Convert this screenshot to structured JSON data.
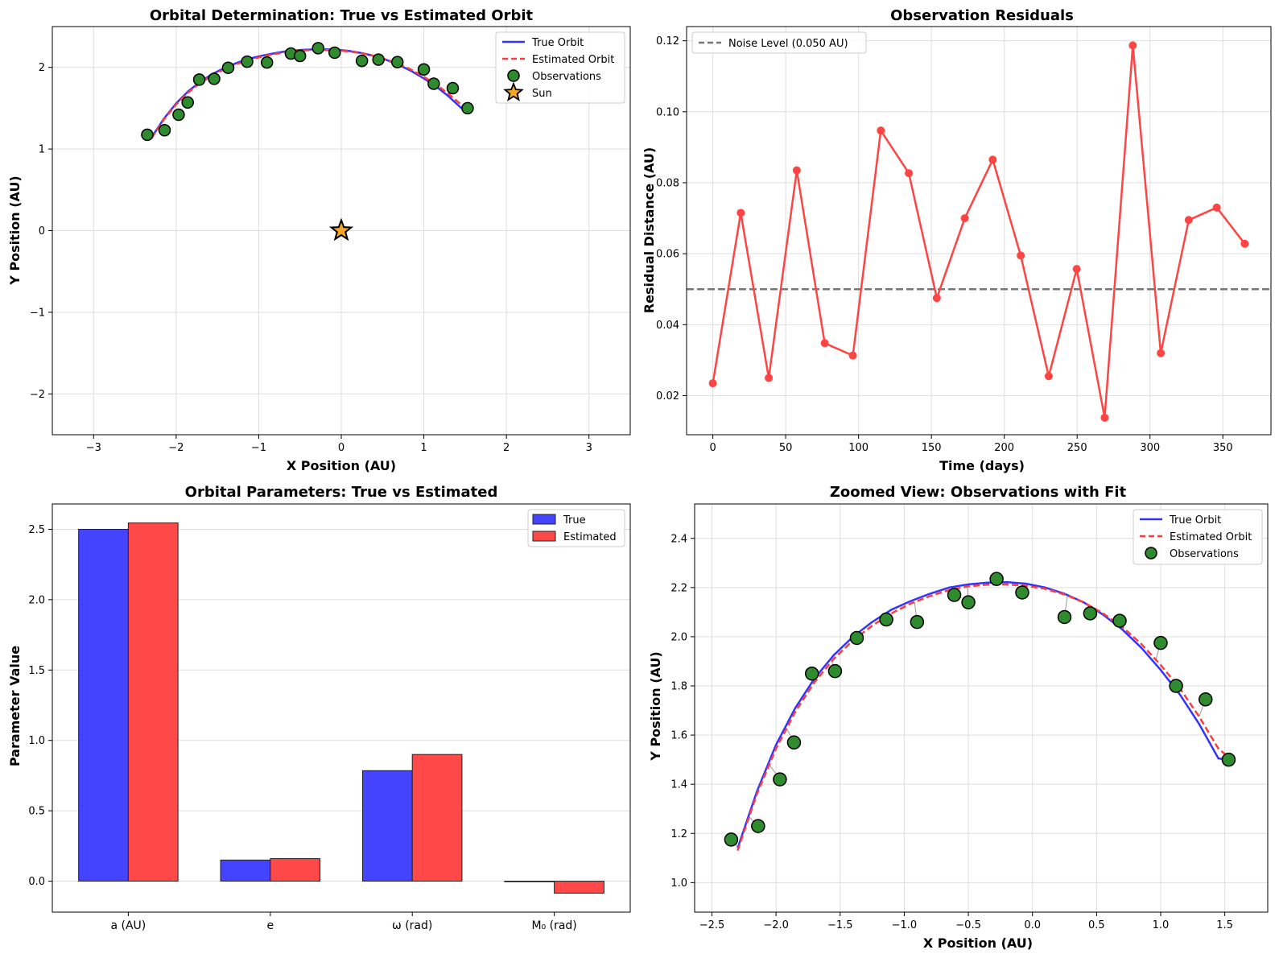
{
  "colors": {
    "true_orbit": "#3333ff",
    "estimated_orbit": "#ff3b3b",
    "observation_fill": "#2e8b2e",
    "sun_fill": "#f5a623",
    "residual": "#ff4444",
    "noise": "#777777",
    "bar_true": "#4444ff",
    "bar_est": "#ff4848",
    "grid": "#dddddd"
  },
  "chart_data": [
    {
      "id": "orbit",
      "type": "line",
      "title": "Orbital Determination: True vs Estimated Orbit",
      "xlabel": "X Position (AU)",
      "ylabel": "Y Position (AU)",
      "xlim": [
        -3.5,
        3.5
      ],
      "ylim": [
        -2.5,
        2.5
      ],
      "xticks": [
        -3,
        -2,
        -1,
        0,
        1,
        2,
        3
      ],
      "yticks": [
        -2,
        -1,
        0,
        1,
        2
      ],
      "xtick_labels": [
        "−3",
        "−2",
        "−1",
        "0",
        "1",
        "2",
        "3"
      ],
      "ytick_labels": [
        "−2",
        "−1",
        "0",
        "1",
        "2"
      ],
      "grid": true,
      "legend_position": "top-right",
      "legend": [
        {
          "label": "True Orbit",
          "kind": "line",
          "color": "#3333ff"
        },
        {
          "label": "Estimated Orbit",
          "kind": "dashed",
          "color": "#ff3b3b"
        },
        {
          "label": "Observations",
          "kind": "circle",
          "color": "#2e8b2e"
        },
        {
          "label": "Sun",
          "kind": "star",
          "color": "#f5a623"
        }
      ],
      "sun": {
        "x": 0,
        "y": 0
      }
    },
    {
      "id": "residuals",
      "type": "line",
      "title": "Observation Residuals",
      "xlabel": "Time (days)",
      "ylabel": "Residual Distance (AU)",
      "xlim": [
        -18,
        383
      ],
      "ylim": [
        0.009,
        0.124
      ],
      "xticks": [
        0,
        50,
        100,
        150,
        200,
        250,
        300,
        350
      ],
      "yticks": [
        0.02,
        0.04,
        0.06,
        0.08,
        0.1,
        0.12
      ],
      "xtick_labels": [
        "0",
        "50",
        "100",
        "150",
        "200",
        "250",
        "300",
        "350"
      ],
      "ytick_labels": [
        "0.02",
        "0.04",
        "0.06",
        "0.08",
        "0.10",
        "0.12"
      ],
      "grid": true,
      "legend_position": "top-left",
      "noise_level": 0.05,
      "legend": [
        {
          "label": "Noise Level (0.050 AU)",
          "kind": "dashed",
          "color": "#777777"
        }
      ],
      "x": [
        0,
        19.2,
        38.4,
        57.6,
        76.8,
        96.1,
        115.3,
        134.5,
        153.7,
        172.9,
        192.1,
        211.3,
        230.5,
        249.7,
        268.9,
        288.2,
        307.4,
        326.6,
        345.8,
        365
      ],
      "y": [
        0.0235,
        0.0715,
        0.025,
        0.0835,
        0.0348,
        0.0313,
        0.0947,
        0.0827,
        0.0475,
        0.07,
        0.0865,
        0.0595,
        0.0255,
        0.0557,
        0.0138,
        0.1187,
        0.032,
        0.0695,
        0.073,
        0.0628
      ]
    },
    {
      "id": "params",
      "type": "bar",
      "title": "Orbital Parameters: True vs Estimated",
      "xlabel": "",
      "ylabel": "Parameter Value",
      "ylim": [
        -0.22,
        2.68
      ],
      "yticks": [
        0.0,
        0.5,
        1.0,
        1.5,
        2.0,
        2.5
      ],
      "ytick_labels": [
        "0.0",
        "0.5",
        "1.0",
        "1.5",
        "2.0",
        "2.5"
      ],
      "grid": true,
      "legend_position": "top-right",
      "categories": [
        "a (AU)",
        "e",
        "ω (rad)",
        "M₀ (rad)"
      ],
      "series": [
        {
          "name": "True",
          "values": [
            2.5,
            0.15,
            0.785,
            0.0
          ],
          "color": "#4444ff"
        },
        {
          "name": "Estimated",
          "values": [
            2.545,
            0.16,
            0.9,
            -0.085
          ],
          "color": "#ff4848"
        }
      ]
    },
    {
      "id": "zoom",
      "type": "line",
      "title": "Zoomed View: Observations with Fit",
      "xlabel": "X Position (AU)",
      "ylabel": "Y Position (AU)",
      "xlim": [
        -2.635,
        1.835
      ],
      "ylim": [
        0.88,
        2.54
      ],
      "xticks": [
        -2.5,
        -2.0,
        -1.5,
        -1.0,
        -0.5,
        0.0,
        0.5,
        1.0,
        1.5
      ],
      "yticks": [
        1.0,
        1.2,
        1.4,
        1.6,
        1.8,
        2.0,
        2.2,
        2.4
      ],
      "xtick_labels": [
        "−2.5",
        "−2.0",
        "−1.5",
        "−1.0",
        "−0.5",
        "0.0",
        "0.5",
        "1.0",
        "1.5"
      ],
      "ytick_labels": [
        "1.0",
        "1.2",
        "1.4",
        "1.6",
        "1.8",
        "2.0",
        "2.2",
        "2.4"
      ],
      "grid": true,
      "legend_position": "top-right",
      "legend": [
        {
          "label": "True Orbit",
          "kind": "line",
          "color": "#3333ff"
        },
        {
          "label": "Estimated Orbit",
          "kind": "dashed",
          "color": "#ff3b3b"
        },
        {
          "label": "Observations",
          "kind": "circle",
          "color": "#2e8b2e"
        }
      ]
    }
  ],
  "observations": {
    "x": [
      -2.35,
      -2.14,
      -1.97,
      -1.86,
      -1.72,
      -1.54,
      -1.37,
      -1.14,
      -0.9,
      -0.61,
      -0.5,
      -0.28,
      -0.08,
      0.25,
      0.45,
      0.68,
      1.0,
      1.12,
      1.35,
      1.53
    ],
    "y": [
      1.175,
      1.23,
      1.42,
      1.57,
      1.85,
      1.86,
      1.995,
      2.07,
      2.06,
      2.17,
      2.14,
      2.235,
      2.18,
      2.08,
      2.095,
      2.065,
      1.975,
      1.8,
      1.745,
      1.5
    ]
  },
  "true_orbit": {
    "x": [
      -2.3,
      -2.15,
      -2.0,
      -1.85,
      -1.7,
      -1.55,
      -1.4,
      -1.25,
      -1.1,
      -0.95,
      -0.8,
      -0.65,
      -0.5,
      -0.35,
      -0.2,
      -0.05,
      0.1,
      0.25,
      0.4,
      0.55,
      0.7,
      0.85,
      1.0,
      1.15,
      1.3,
      1.45,
      1.52
    ],
    "y": [
      1.14,
      1.37,
      1.56,
      1.71,
      1.83,
      1.925,
      2.0,
      2.06,
      2.11,
      2.145,
      2.175,
      2.2,
      2.213,
      2.22,
      2.222,
      2.216,
      2.2,
      2.175,
      2.14,
      2.09,
      2.03,
      1.955,
      1.865,
      1.765,
      1.645,
      1.505,
      1.5
    ]
  },
  "estimated_orbit": {
    "x": [
      -2.3,
      -2.15,
      -2.0,
      -1.85,
      -1.7,
      -1.55,
      -1.4,
      -1.25,
      -1.1,
      -0.95,
      -0.8,
      -0.65,
      -0.5,
      -0.35,
      -0.2,
      -0.05,
      0.1,
      0.25,
      0.4,
      0.55,
      0.7,
      0.85,
      1.0,
      1.15,
      1.3,
      1.45,
      1.53
    ],
    "y": [
      1.13,
      1.36,
      1.545,
      1.695,
      1.815,
      1.91,
      1.985,
      2.045,
      2.095,
      2.135,
      2.165,
      2.19,
      2.205,
      2.212,
      2.213,
      2.207,
      2.195,
      2.172,
      2.14,
      2.095,
      2.04,
      1.97,
      1.885,
      1.79,
      1.675,
      1.545,
      1.51
    ]
  }
}
